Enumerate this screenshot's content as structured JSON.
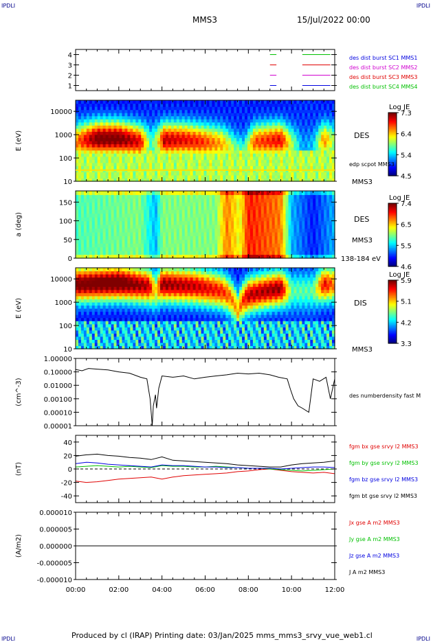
{
  "header": {
    "corner_tl": "IPDLI",
    "corner_tr": "IPDLI",
    "corner_bl": "IPDLI",
    "corner_br": "IPDLI",
    "spacecraft": "MMS3",
    "datetime": "15/Jul/2022 00:00"
  },
  "footer": {
    "text": "Produced by cl (IRAP)   Printing date: 03/Jan/2025   mms_mms3_srvy_vue_web1.cl"
  },
  "colors": {
    "red": "#e00000",
    "green": "#00c000",
    "blue": "#0000e0",
    "magenta": "#d000d0",
    "black": "#000000"
  },
  "chart_data": [
    {
      "type": "line",
      "panel": "burst-status",
      "ylim": [
        0.5,
        4.5
      ],
      "ytick_labels": [
        "1",
        "2",
        "3",
        "4"
      ],
      "legend": [
        {
          "label": "des dist burst SC1 MMS1",
          "color": "#0000e0"
        },
        {
          "label": "des dist burst SC2 MMS2",
          "color": "#d000d0"
        },
        {
          "label": "des dist burst SC3 MMS3",
          "color": "#e00000"
        },
        {
          "label": "des dist burst SC4 MMS4",
          "color": "#00c000"
        }
      ],
      "series": [
        {
          "level": 1,
          "color": "#0000e0",
          "segments": [
            [
              9.0,
              9.3
            ],
            [
              10.5,
              11.8
            ]
          ]
        },
        {
          "level": 2,
          "color": "#d000d0",
          "segments": [
            [
              9.0,
              9.3
            ],
            [
              10.5,
              11.8
            ]
          ]
        },
        {
          "level": 3,
          "color": "#e00000",
          "segments": [
            [
              9.0,
              9.3
            ],
            [
              10.5,
              11.8
            ]
          ]
        },
        {
          "level": 4,
          "color": "#00c000",
          "segments": [
            [
              9.0,
              9.3
            ],
            [
              10.5,
              11.8
            ]
          ]
        }
      ]
    },
    {
      "type": "heatmap",
      "panel": "des-energy",
      "ylabel": "E (eV)",
      "ytick_labels": [
        "10",
        "100",
        "1000",
        "10000"
      ],
      "ylim": [
        10,
        30000
      ],
      "yscale": "log",
      "right_labels": [
        "DES",
        "MMS3",
        "edp scpot MMS3"
      ],
      "colorbar": {
        "title": "Log JE",
        "ticks": [
          "4.5",
          "5.4",
          "6.4",
          "7.3"
        ],
        "range": [
          4.5,
          7.3
        ]
      },
      "profile": [
        {
          "t": 0.0,
          "peak_e": 500,
          "level": 0.6
        },
        {
          "t": 1.0,
          "peak_e": 700,
          "level": 0.9
        },
        {
          "t": 2.0,
          "peak_e": 700,
          "level": 0.9
        },
        {
          "t": 3.0,
          "peak_e": 500,
          "level": 0.75
        },
        {
          "t": 3.5,
          "peak_e": 400,
          "level": 0.25
        },
        {
          "t": 3.8,
          "peak_e": 500,
          "level": 0.45
        },
        {
          "t": 4.1,
          "peak_e": 600,
          "level": 0.8
        },
        {
          "t": 5.0,
          "peak_e": 600,
          "level": 0.75
        },
        {
          "t": 5.8,
          "peak_e": 500,
          "level": 0.7
        },
        {
          "t": 6.8,
          "peak_e": 400,
          "level": 0.55
        },
        {
          "t": 7.4,
          "peak_e": 200,
          "level": 0.35
        },
        {
          "t": 7.8,
          "peak_e": 150,
          "level": 0.3
        },
        {
          "t": 8.3,
          "peak_e": 500,
          "level": 0.65
        },
        {
          "t": 9.5,
          "peak_e": 600,
          "level": 0.75
        },
        {
          "t": 10.0,
          "peak_e": 400,
          "level": 0.4
        },
        {
          "t": 10.5,
          "peak_e": 300,
          "level": 0.1
        },
        {
          "t": 11.0,
          "peak_e": 300,
          "level": 0.15
        },
        {
          "t": 11.5,
          "peak_e": 600,
          "level": 0.6
        },
        {
          "t": 12.0,
          "peak_e": 500,
          "level": 0.35
        }
      ]
    },
    {
      "type": "heatmap",
      "panel": "des-pitch",
      "ylabel": "a (deg)",
      "ytick_labels": [
        "0",
        "50",
        "100",
        "150"
      ],
      "ylim": [
        0,
        180
      ],
      "right_labels": [
        "DES",
        "MMS3",
        "138-184 eV"
      ],
      "colorbar": {
        "title": "Log JE",
        "ticks": [
          "4.6",
          "5.5",
          "6.5",
          "7.4"
        ],
        "range": [
          4.6,
          7.4
        ]
      },
      "profile": [
        {
          "t": 0.0,
          "level": 0.45
        },
        {
          "t": 3.0,
          "level": 0.5
        },
        {
          "t": 3.7,
          "level": 0.3
        },
        {
          "t": 4.0,
          "level": 0.5
        },
        {
          "t": 6.5,
          "level": 0.5
        },
        {
          "t": 7.0,
          "level": 0.75
        },
        {
          "t": 7.6,
          "level": 0.6
        },
        {
          "t": 8.0,
          "level": 0.85
        },
        {
          "t": 9.5,
          "level": 0.75
        },
        {
          "t": 10.0,
          "level": 0.3
        },
        {
          "t": 11.0,
          "level": 0.15
        },
        {
          "t": 12.0,
          "level": 0.3
        }
      ]
    },
    {
      "type": "heatmap",
      "panel": "dis-energy",
      "ylabel": "E (eV)",
      "ytick_labels": [
        "10",
        "100",
        "1000",
        "10000"
      ],
      "ylim": [
        10,
        30000
      ],
      "yscale": "log",
      "right_labels": [
        "DIS",
        "MMS3"
      ],
      "colorbar": {
        "title": "Log JE",
        "ticks": [
          "3.3",
          "4.2",
          "5.1",
          "5.9"
        ],
        "range": [
          3.3,
          5.9
        ]
      },
      "profile": [
        {
          "t": 0.0,
          "peak_e": 6000,
          "level": 0.9
        },
        {
          "t": 2.0,
          "peak_e": 7000,
          "level": 0.95
        },
        {
          "t": 3.4,
          "peak_e": 5000,
          "level": 0.8
        },
        {
          "t": 3.7,
          "peak_e": 3000,
          "level": 0.45
        },
        {
          "t": 4.0,
          "peak_e": 6000,
          "level": 0.85
        },
        {
          "t": 5.5,
          "peak_e": 5000,
          "level": 0.8
        },
        {
          "t": 6.8,
          "peak_e": 3000,
          "level": 0.7
        },
        {
          "t": 7.5,
          "peak_e": 400,
          "level": 0.55
        },
        {
          "t": 8.0,
          "peak_e": 2000,
          "level": 0.8
        },
        {
          "t": 9.5,
          "peak_e": 4000,
          "level": 0.85
        },
        {
          "t": 10.0,
          "peak_e": 3000,
          "level": 0.3
        },
        {
          "t": 11.0,
          "peak_e": 3000,
          "level": 0.3
        },
        {
          "t": 11.5,
          "peak_e": 6000,
          "level": 0.75
        },
        {
          "t": 12.0,
          "peak_e": 6000,
          "level": 0.6
        }
      ]
    },
    {
      "type": "line",
      "panel": "density",
      "ylabel": "(cm^-3)",
      "yscale": "log",
      "ylim": [
        1e-05,
        1.0
      ],
      "ytick_labels": [
        "0.00001",
        "0.00010",
        "0.00100",
        "0.01000",
        "0.10000",
        "1.00000"
      ],
      "legend": [
        {
          "label": "des numberdensity fast M",
          "color": "#000000"
        }
      ],
      "series": [
        {
          "name": "des numberdensity fast M",
          "color": "#000000",
          "x": [
            0.0,
            0.3,
            0.6,
            1.0,
            1.5,
            2.0,
            2.5,
            3.0,
            3.3,
            3.45,
            3.55,
            3.6,
            3.7,
            3.75,
            3.85,
            4.0,
            4.5,
            5.0,
            5.5,
            6.0,
            6.5,
            7.0,
            7.5,
            8.0,
            8.5,
            9.0,
            9.4,
            9.8,
            9.95,
            10.1,
            10.3,
            10.5,
            10.8,
            11.0,
            11.3,
            11.6,
            11.8,
            12.0
          ],
          "y": [
            0.15,
            0.12,
            0.18,
            0.16,
            0.14,
            0.1,
            0.08,
            0.04,
            0.03,
            0.001,
            1e-05,
            0.0003,
            0.002,
            0.0002,
            0.006,
            0.05,
            0.04,
            0.05,
            0.03,
            0.04,
            0.05,
            0.06,
            0.08,
            0.07,
            0.08,
            0.06,
            0.04,
            0.03,
            0.005,
            0.001,
            0.0003,
            0.0002,
            0.0001,
            0.03,
            0.02,
            0.04,
            0.001,
            0.03
          ]
        }
      ]
    },
    {
      "type": "line",
      "panel": "magnetic-field",
      "ylabel": "(nT)",
      "ylim": [
        -50,
        50
      ],
      "ytick_labels": [
        "-40",
        "-20",
        "0",
        "20",
        "40"
      ],
      "legend": [
        {
          "label": "fgm bx gse srvy l2 MMS3",
          "color": "#e00000"
        },
        {
          "label": "fgm by gse srvy l2 MMS3",
          "color": "#00c000"
        },
        {
          "label": "fgm bz gse srvy l2 MMS3",
          "color": "#0000e0"
        },
        {
          "label": "fgm bt gse srvy l2 MMS3",
          "color": "#000000"
        }
      ],
      "series": [
        {
          "name": "fgm bt gse srvy l2 MMS3",
          "color": "#000000",
          "x": [
            0,
            0.5,
            1,
            1.5,
            2,
            2.5,
            3,
            3.5,
            4,
            4.5,
            5,
            5.5,
            6,
            6.5,
            7,
            7.5,
            8,
            8.5,
            9,
            9.5,
            10,
            10.5,
            11,
            11.5,
            12
          ],
          "y": [
            19,
            21,
            22,
            20,
            19,
            17,
            16,
            14,
            18,
            13,
            12,
            11,
            10,
            9,
            8,
            6,
            5,
            4,
            3,
            3,
            6,
            8,
            9,
            10,
            12
          ]
        },
        {
          "name": "fgm bx gse srvy l2 MMS3",
          "color": "#e00000",
          "x": [
            0,
            0.5,
            1,
            1.5,
            2,
            2.5,
            3,
            3.5,
            4,
            4.5,
            5,
            5.5,
            6,
            6.5,
            7,
            7.5,
            8,
            8.5,
            9,
            9.5,
            10,
            10.5,
            11,
            11.5,
            12
          ],
          "y": [
            -18,
            -20,
            -19,
            -17,
            -15,
            -14,
            -13,
            -12,
            -15,
            -12,
            -10,
            -9,
            -8,
            -7,
            -6,
            -4,
            -3,
            -1,
            0,
            -2,
            -4,
            -5,
            -6,
            -5,
            -7
          ]
        },
        {
          "name": "fgm by gse srvy l2 MMS3",
          "color": "#00c000",
          "x": [
            0,
            0.5,
            1,
            1.5,
            2,
            2.5,
            3,
            3.5,
            4,
            4.5,
            5,
            5.5,
            6,
            6.5,
            7,
            7.5,
            8,
            8.5,
            9,
            9.5,
            10,
            10.5,
            11,
            11.5,
            12
          ],
          "y": [
            3,
            4,
            5,
            4,
            3,
            4,
            3,
            2,
            5,
            4,
            4,
            3,
            3,
            4,
            3,
            2,
            1,
            1,
            0,
            -1,
            -2,
            -3,
            -2,
            -1,
            0
          ]
        },
        {
          "name": "fgm bz gse srvy l2 MMS3",
          "color": "#0000e0",
          "x": [
            0,
            0.5,
            1,
            1.5,
            2,
            2.5,
            3,
            3.5,
            4,
            4.5,
            5,
            5.5,
            6,
            6.5,
            7,
            7.5,
            8,
            8.5,
            9,
            9.5,
            10,
            10.5,
            11,
            11.5,
            12
          ],
          "y": [
            8,
            10,
            9,
            7,
            6,
            5,
            4,
            3,
            6,
            5,
            5,
            4,
            3,
            3,
            2,
            2,
            1,
            1,
            1,
            0,
            1,
            2,
            3,
            3,
            2
          ]
        }
      ]
    },
    {
      "type": "line",
      "panel": "current-density",
      "ylabel": "(A/m2)",
      "ylim": [
        -1e-05,
        1e-05
      ],
      "ytick_labels": [
        "-0.000010",
        "-0.000005",
        "0.000000",
        "0.000005",
        "0.000010"
      ],
      "legend": [
        {
          "label": "Jx gse A m2 MMS3",
          "color": "#e00000"
        },
        {
          "label": "Jy gse A m2 MMS3",
          "color": "#00c000"
        },
        {
          "label": "Jz gse A m2 MMS3",
          "color": "#0000e0"
        },
        {
          "label": "J A m2 MMS3",
          "color": "#000000"
        }
      ],
      "series": [
        {
          "name": "J A m2 MMS3",
          "color": "#000000",
          "x": [
            0,
            1,
            2,
            3,
            4,
            5,
            6,
            7,
            8,
            9,
            10,
            11,
            12
          ],
          "y": [
            0,
            0,
            0,
            0,
            0,
            0,
            0,
            0,
            0,
            0,
            0,
            0,
            0
          ]
        }
      ]
    }
  ],
  "xaxis": {
    "xlim": [
      0,
      12
    ],
    "tick_labels": [
      "00:00",
      "02:00",
      "04:00",
      "06:00",
      "08:00",
      "10:00",
      "12:00"
    ]
  }
}
